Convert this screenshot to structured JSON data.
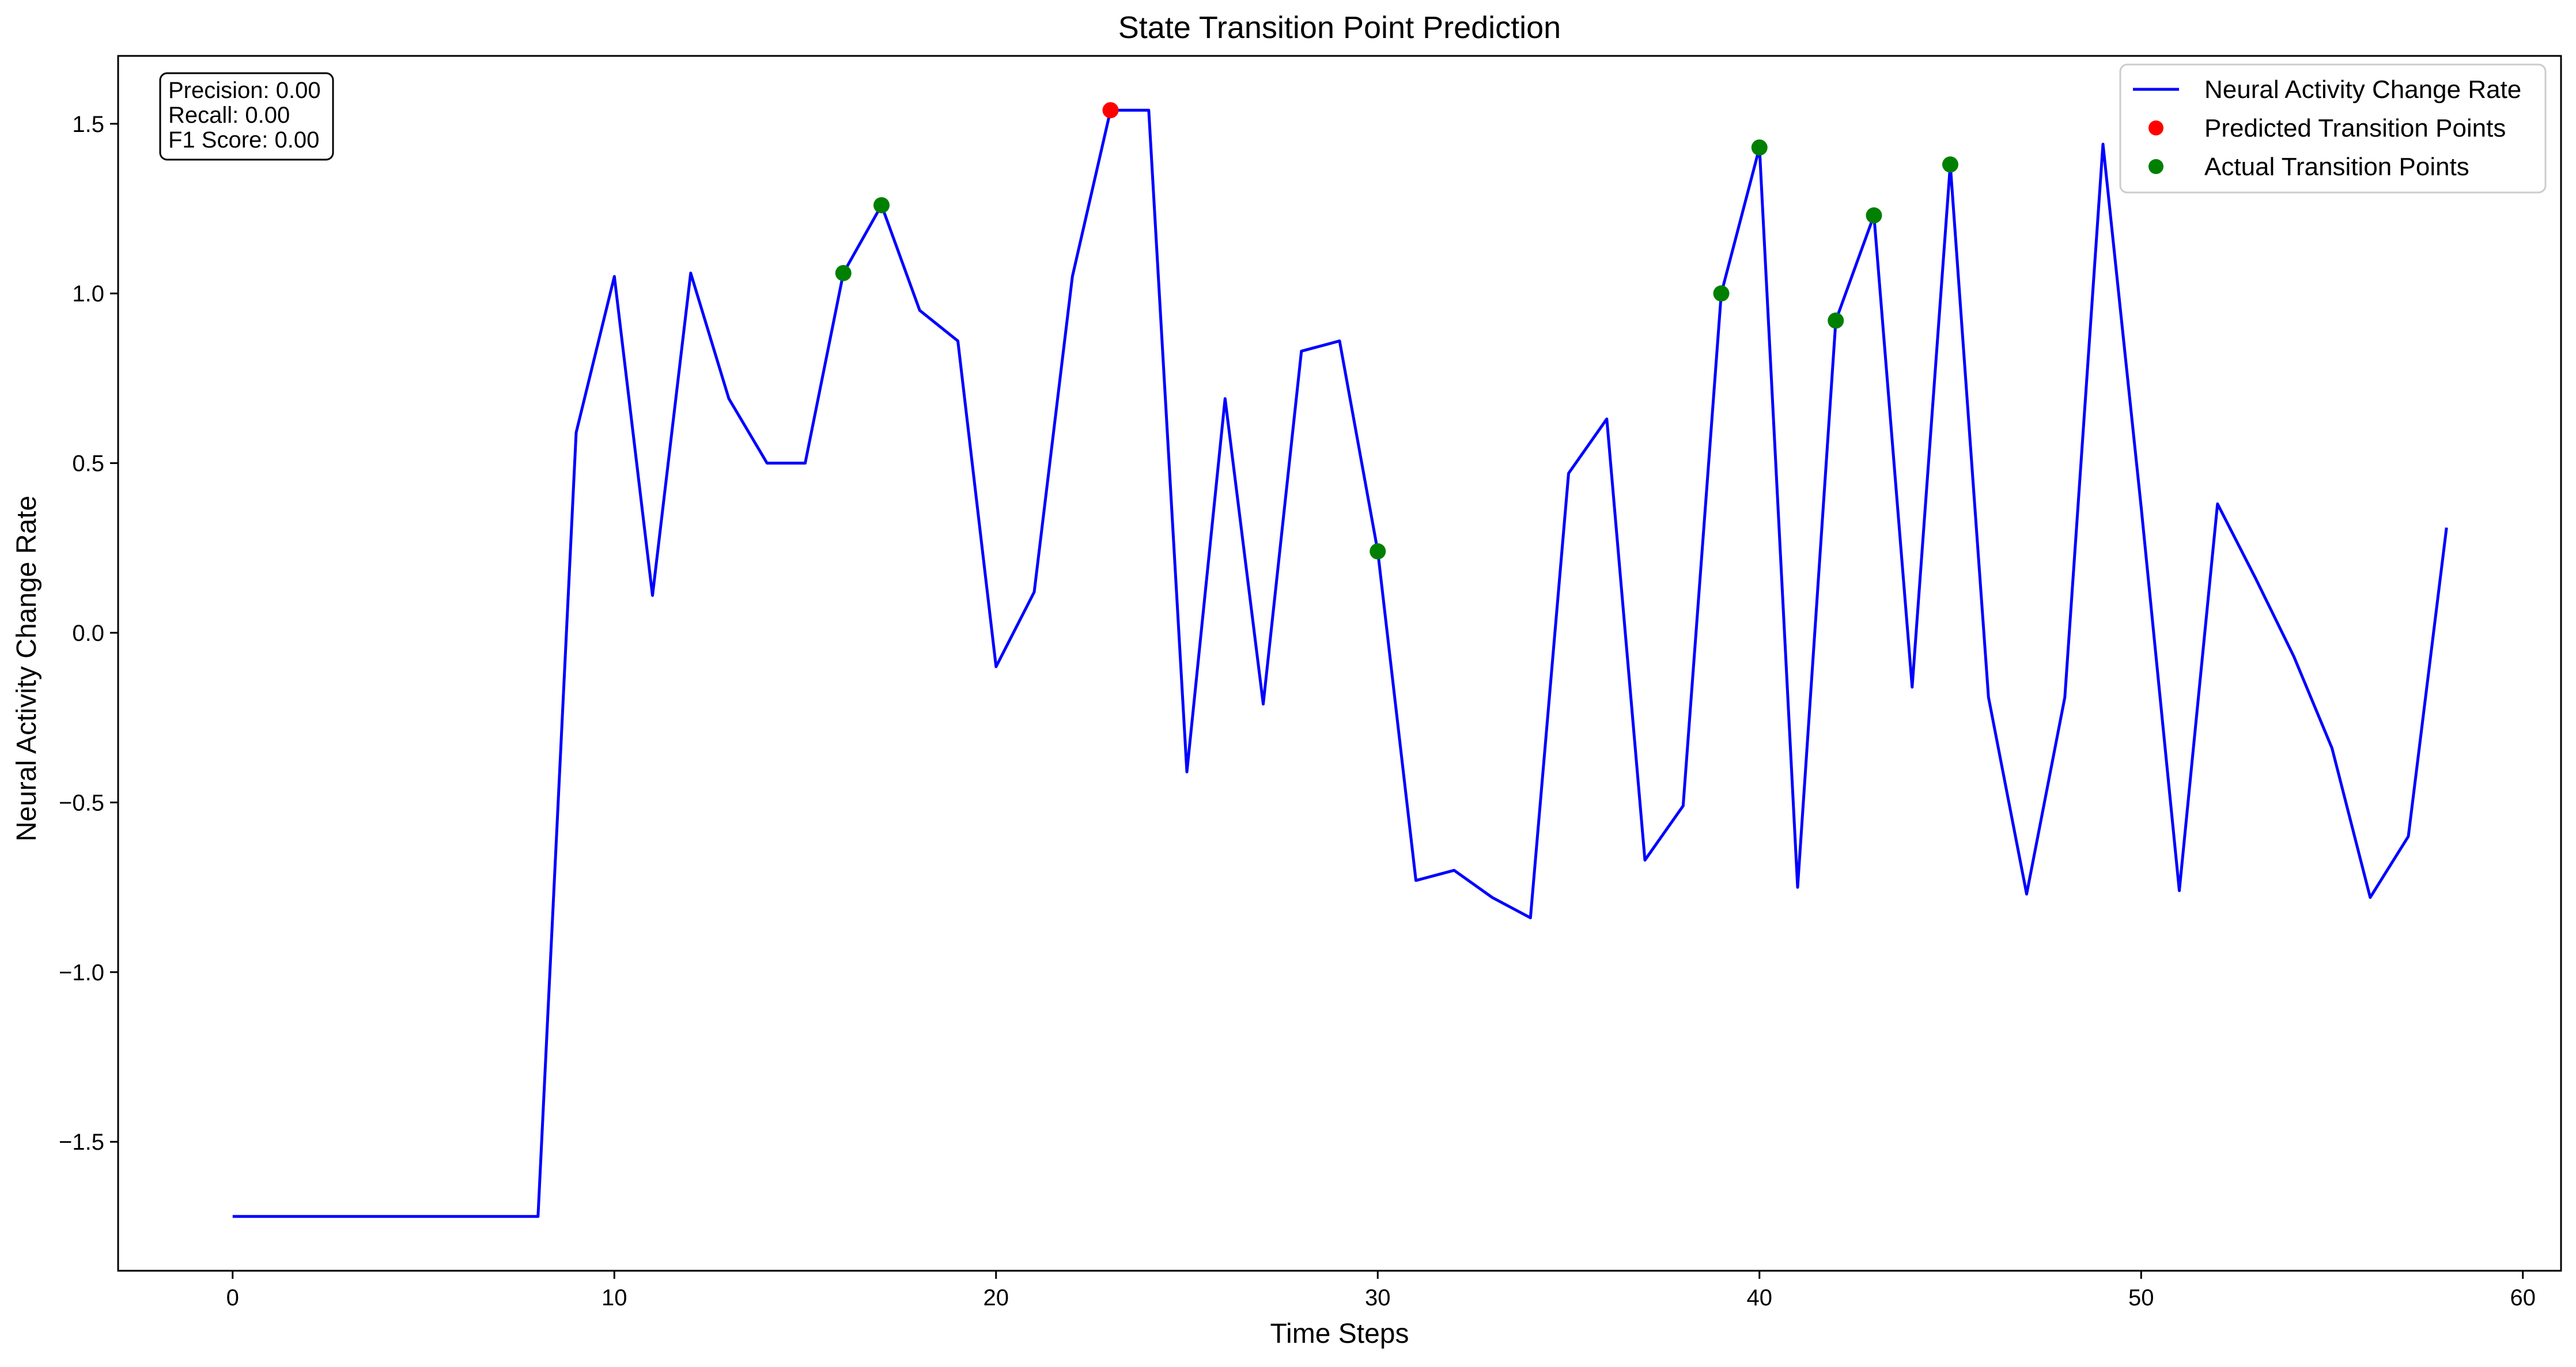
{
  "chart_data": {
    "type": "line",
    "title": "State Transition Point Prediction",
    "xlabel": "Time Steps",
    "ylabel": "Neural Activity Change Rate",
    "xlim": [
      -3,
      61
    ],
    "ylim": [
      -1.88,
      1.7
    ],
    "xticks": [
      0,
      10,
      20,
      30,
      40,
      50,
      60
    ],
    "yticks": [
      -1.5,
      -1.0,
      -0.5,
      0.0,
      0.5,
      1.0,
      1.5
    ],
    "grid": false,
    "legend_position": "top-right",
    "series": [
      {
        "name": "Neural Activity Change Rate",
        "color": "#0000ff",
        "x": [
          0,
          1,
          2,
          3,
          4,
          5,
          6,
          7,
          8,
          9,
          10,
          11,
          12,
          13,
          14,
          15,
          16,
          17,
          18,
          19,
          20,
          21,
          22,
          23,
          24,
          25,
          26,
          27,
          28,
          29,
          30,
          31,
          32,
          33,
          34,
          35,
          36,
          37,
          38,
          39,
          40,
          41,
          42,
          43,
          44,
          45,
          46,
          47,
          48,
          49,
          50,
          51,
          52,
          53,
          54,
          55,
          56,
          57,
          58
        ],
        "y": [
          -1.72,
          -1.72,
          -1.72,
          -1.72,
          -1.72,
          -1.72,
          -1.72,
          -1.72,
          -1.72,
          0.59,
          1.05,
          0.11,
          1.06,
          0.69,
          0.5,
          0.5,
          1.06,
          1.26,
          0.95,
          0.86,
          -0.1,
          0.12,
          1.05,
          1.54,
          1.54,
          -0.41,
          0.69,
          -0.21,
          0.83,
          0.86,
          0.24,
          -0.73,
          -0.7,
          -0.78,
          -0.84,
          0.47,
          0.63,
          -0.67,
          -0.51,
          1.0,
          1.43,
          -0.75,
          0.92,
          1.23,
          -0.16,
          1.38,
          -0.19,
          -0.77,
          -0.19,
          1.44,
          0.37,
          -0.76,
          0.38,
          0.16,
          -0.07,
          -0.34,
          -0.78,
          -0.6,
          0.31
        ]
      }
    ],
    "predicted_points": {
      "name": "Predicted Transition Points",
      "color": "#ff0000",
      "x": [
        23
      ],
      "y": [
        1.54
      ]
    },
    "actual_points": {
      "name": "Actual Transition Points",
      "color": "#008000",
      "x": [
        16,
        17,
        30,
        39,
        40,
        42,
        43,
        45
      ],
      "y": [
        1.06,
        1.26,
        0.24,
        1.0,
        1.43,
        0.92,
        1.23,
        1.38
      ]
    },
    "metrics": {
      "precision": "Precision: 0.00",
      "recall": "Recall: 0.00",
      "f1": "F1 Score: 0.00"
    }
  }
}
